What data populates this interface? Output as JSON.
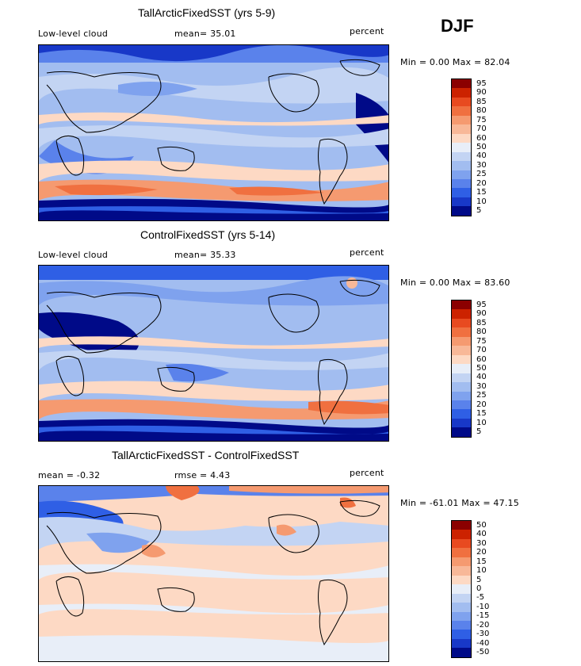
{
  "season": "DJF",
  "panels": [
    {
      "id": "p1",
      "title": "TallArcticFixedSST (yrs 5-9)",
      "left_label": "Low-level cloud",
      "center_label": "mean=  35.01",
      "right_label": "percent",
      "range_text": "Min =   0.00 Max =  82.04",
      "colorbar_labels": [
        "95",
        "90",
        "85",
        "80",
        "75",
        "70",
        "60",
        "50",
        "40",
        "30",
        "25",
        "20",
        "15",
        "10",
        "5"
      ],
      "colors": [
        "#8b0000",
        "#cc2200",
        "#e84a20",
        "#f07040",
        "#f59a70",
        "#f8b898",
        "#fdd9c4",
        "#e8eef8",
        "#c3d4f3",
        "#a2bdf0",
        "#7fa2ee",
        "#5a82eb",
        "#2f5fe5",
        "#1838c8",
        "#000a88"
      ]
    },
    {
      "id": "p2",
      "title": "ControlFixedSST (yrs 5-14)",
      "left_label": "Low-level cloud",
      "center_label": "mean=  35.33",
      "right_label": "percent",
      "range_text": "Min =   0.00 Max =  83.60",
      "colorbar_labels": [
        "95",
        "90",
        "85",
        "80",
        "75",
        "70",
        "60",
        "50",
        "40",
        "30",
        "25",
        "20",
        "15",
        "10",
        "5"
      ],
      "colors": [
        "#8b0000",
        "#cc2200",
        "#e84a20",
        "#f07040",
        "#f59a70",
        "#f8b898",
        "#fdd9c4",
        "#e8eef8",
        "#c3d4f3",
        "#a2bdf0",
        "#7fa2ee",
        "#5a82eb",
        "#2f5fe5",
        "#1838c8",
        "#000a88"
      ]
    },
    {
      "id": "p3",
      "title": "TallArcticFixedSST - ControlFixedSST",
      "left_label": "mean =  -0.32",
      "center_label": "rmse =   4.43",
      "right_label": "percent",
      "range_text": "Min = -61.01 Max =  47.15",
      "colorbar_labels": [
        "50",
        "40",
        "30",
        "20",
        "15",
        "10",
        "5",
        "0",
        "-5",
        "-10",
        "-15",
        "-20",
        "-30",
        "-40",
        "-50"
      ],
      "colors": [
        "#8b0000",
        "#cc2200",
        "#e84a20",
        "#f07040",
        "#f59a70",
        "#f8b898",
        "#fdd9c4",
        "#e8eef8",
        "#c3d4f3",
        "#a2bdf0",
        "#7fa2ee",
        "#5a82eb",
        "#2f5fe5",
        "#1838c8",
        "#000a88"
      ]
    }
  ]
}
